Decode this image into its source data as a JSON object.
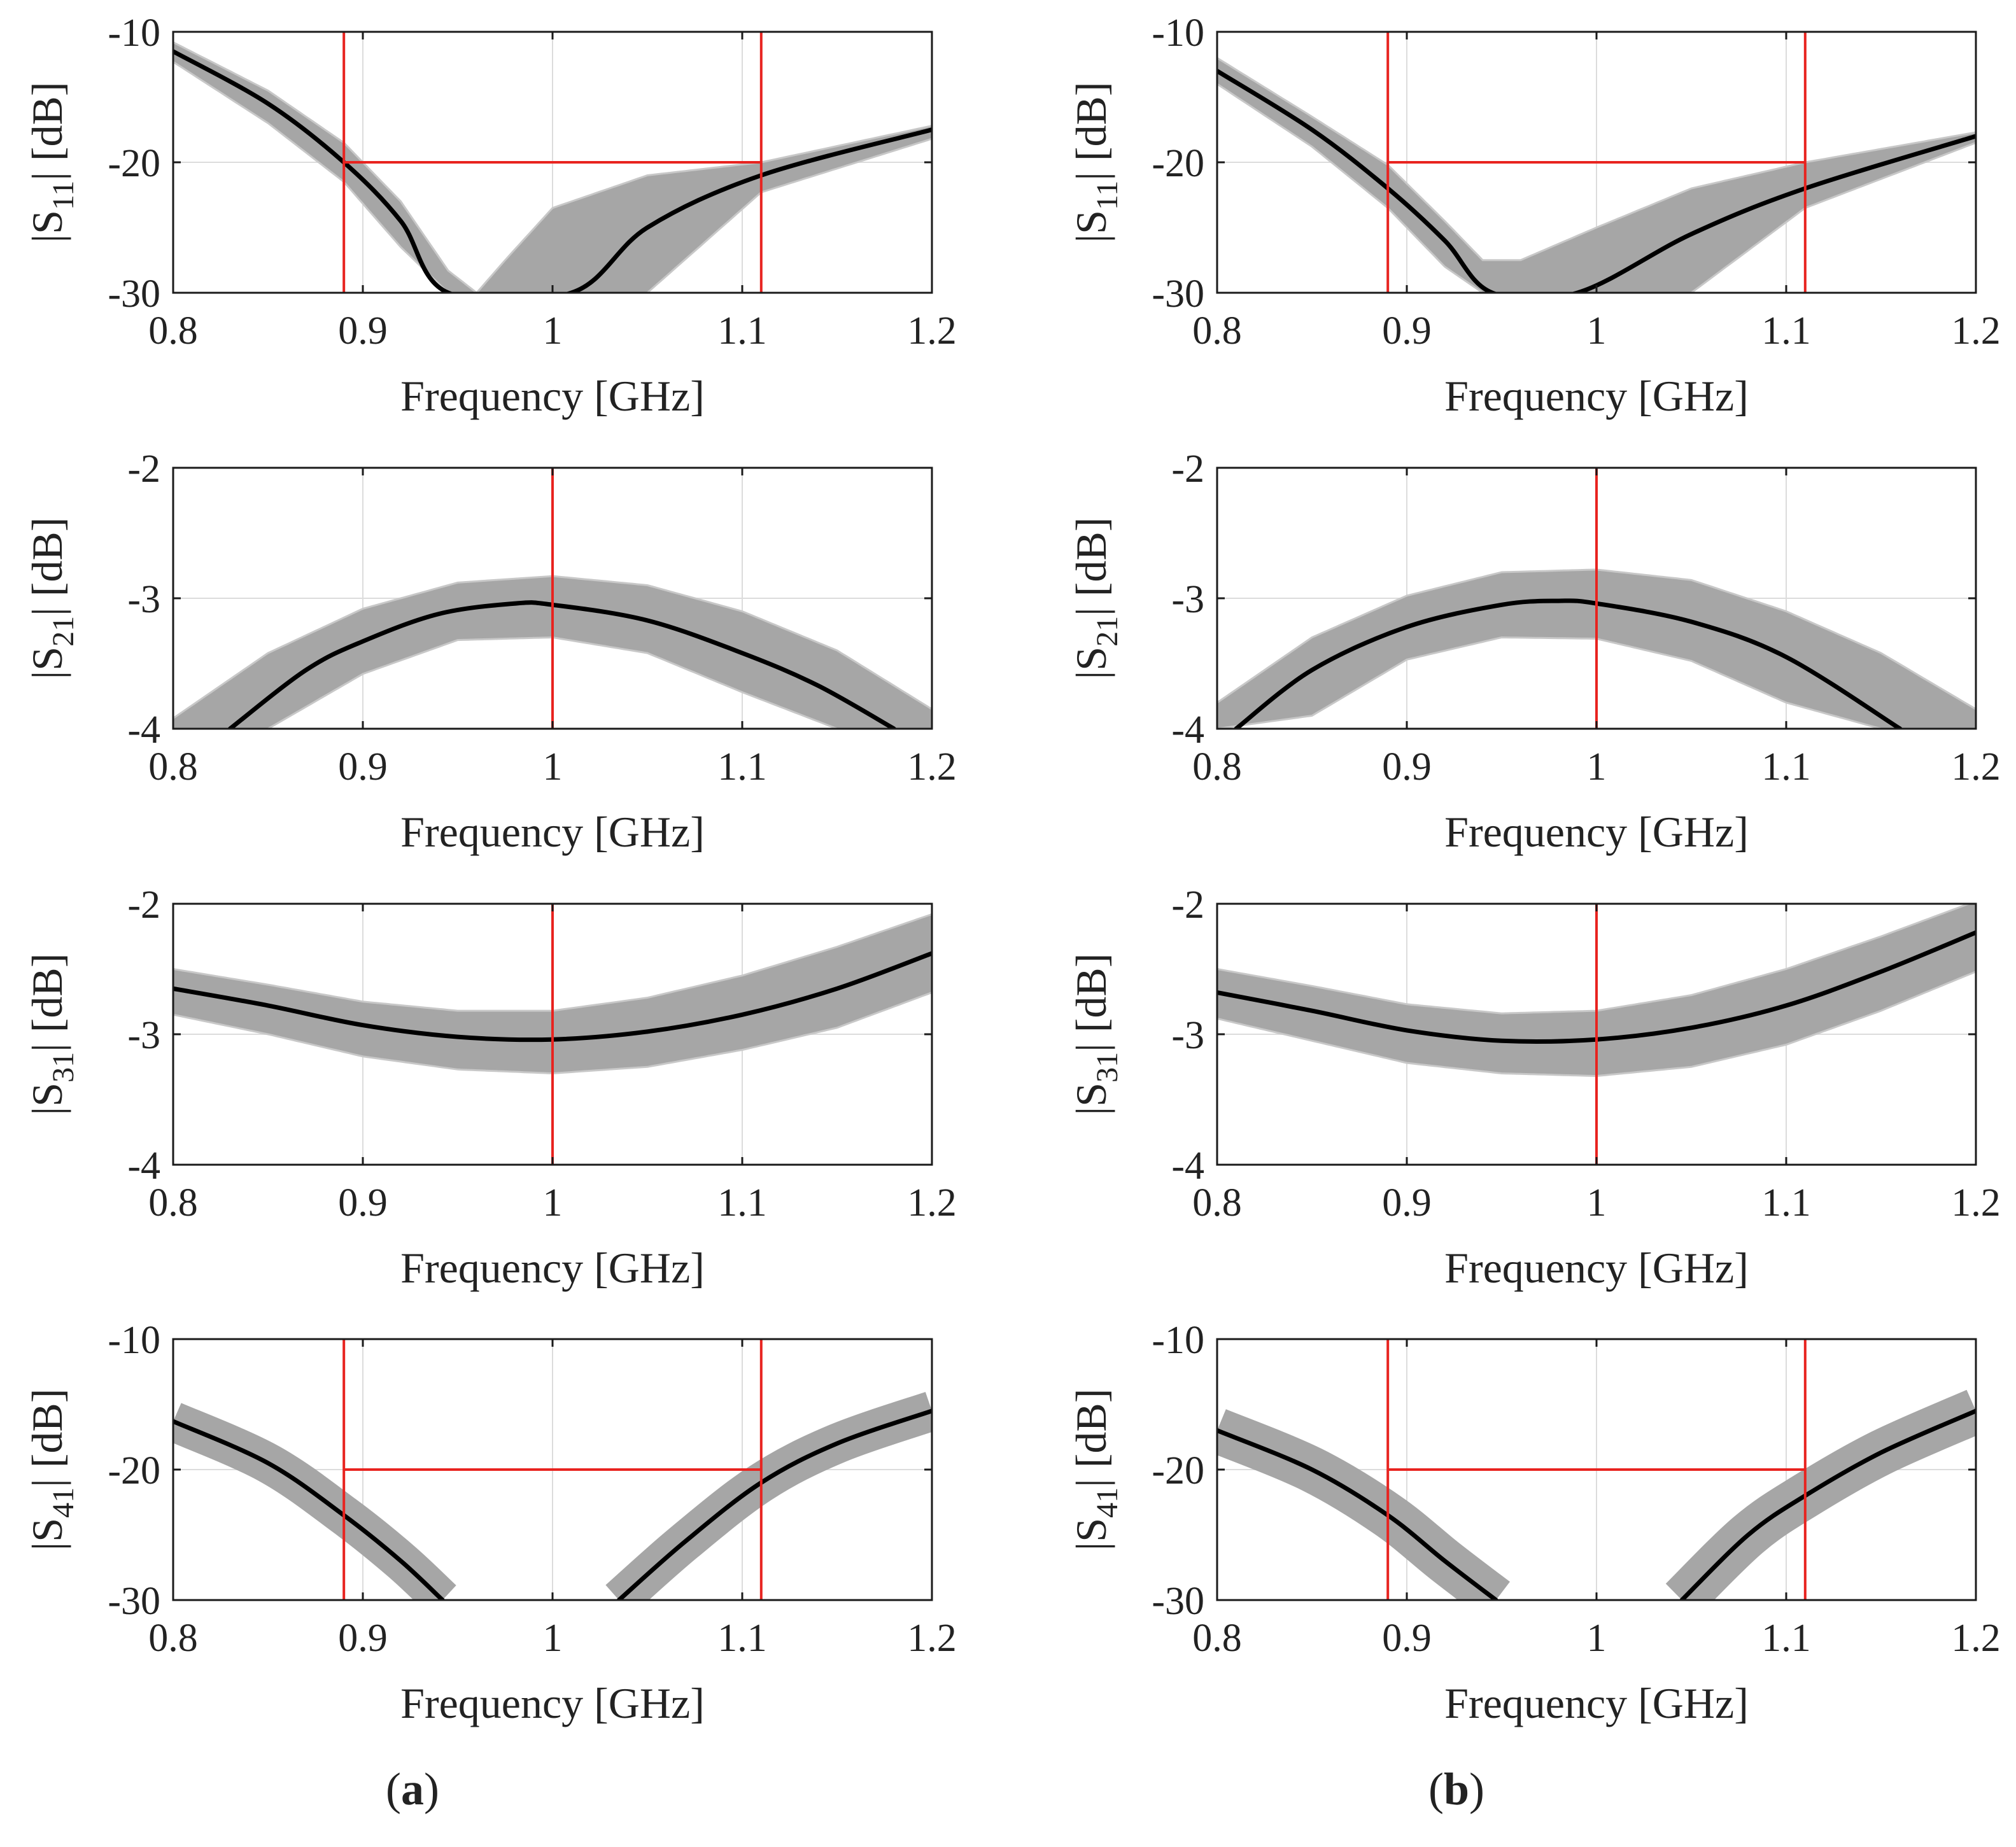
{
  "figure": {
    "columns": [
      {
        "label": "(a)",
        "letter": "a"
      },
      {
        "label": "(b)",
        "letter": "b"
      }
    ]
  },
  "colors": {
    "nominal": "#000000",
    "monte_carlo": "#a6a6a6",
    "spec": "#e8231f",
    "grid": "#dcdcdc",
    "axis": "#1a1a1a"
  },
  "chart_data": [
    {
      "type": "line",
      "column": "a",
      "row": 1,
      "title": "",
      "xlabel": "Frequency [GHz]",
      "ylabel": {
        "prefix": "|S",
        "sub": "11",
        "suffix": "| [dB]"
      },
      "xlim": [
        0.8,
        1.2
      ],
      "ylim": [
        -30,
        -10
      ],
      "xticks": [
        0.8,
        0.9,
        1,
        1.1,
        1.2
      ],
      "xtick_labels": [
        "0.8",
        "0.9",
        "1",
        "1.1",
        "1.2"
      ],
      "yticks": [
        -10,
        -20,
        -30
      ],
      "ytick_labels": [
        "-10",
        "-20",
        "-30"
      ],
      "grid": true,
      "nominal": {
        "x": [
          0.8,
          0.85,
          0.89,
          0.92,
          0.945,
          1.01,
          1.05,
          1.11,
          1.2
        ],
        "y": [
          -11.5,
          -15.5,
          -20,
          -24.5,
          -30,
          -30,
          -25,
          -21,
          -17.5
        ]
      },
      "spread": {
        "x": [
          0.8,
          0.85,
          0.89,
          0.92,
          0.945,
          0.96,
          0.975,
          1.0,
          1.05,
          1.11,
          1.2
        ],
        "upper": [
          -10.8,
          -14.5,
          -18.5,
          -23,
          -28.3,
          -30,
          -27.5,
          -23.5,
          -21,
          -20,
          -17.2
        ],
        "lower": [
          -12.3,
          -17,
          -21.5,
          -26.5,
          -30,
          -30,
          -30,
          -30,
          -30,
          -22.3,
          -18.2
        ]
      },
      "markers": {
        "vlines": [
          0.89,
          1.11
        ],
        "hlines": [
          {
            "y": -20,
            "x": [
              0.89,
              1.11
            ]
          }
        ]
      }
    },
    {
      "type": "line",
      "column": "b",
      "row": 1,
      "title": "",
      "xlabel": "Frequency [GHz]",
      "ylabel": {
        "prefix": "|S",
        "sub": "11",
        "suffix": "| [dB]"
      },
      "xlim": [
        0.8,
        1.2
      ],
      "ylim": [
        -30,
        -10
      ],
      "xticks": [
        0.8,
        0.9,
        1,
        1.1,
        1.2
      ],
      "xtick_labels": [
        "0.8",
        "0.9",
        "1",
        "1.1",
        "1.2"
      ],
      "yticks": [
        -10,
        -20,
        -30
      ],
      "ytick_labels": [
        "-10",
        "-20",
        "-30"
      ],
      "grid": true,
      "nominal": {
        "x": [
          0.8,
          0.85,
          0.89,
          0.92,
          0.945,
          0.99,
          1.05,
          1.11,
          1.2
        ],
        "y": [
          -13,
          -17.5,
          -22,
          -26,
          -30,
          -30,
          -25.5,
          -22,
          -18
        ]
      },
      "spread": {
        "x": [
          0.8,
          0.85,
          0.89,
          0.92,
          0.94,
          0.96,
          1.0,
          1.05,
          1.11,
          1.2
        ],
        "upper": [
          -12,
          -16.5,
          -20.2,
          -24.5,
          -27.5,
          -27.5,
          -25,
          -22,
          -20,
          -17.7
        ],
        "lower": [
          -14,
          -18.8,
          -23.5,
          -28,
          -30,
          -30,
          -30,
          -30,
          -23.5,
          -18.5
        ]
      },
      "markers": {
        "vlines": [
          0.89,
          1.11
        ],
        "hlines": [
          {
            "y": -20,
            "x": [
              0.89,
              1.11
            ]
          }
        ]
      }
    },
    {
      "type": "line",
      "column": "a",
      "row": 2,
      "title": "",
      "xlabel": "Frequency [GHz]",
      "ylabel": {
        "prefix": "|S",
        "sub": "21",
        "suffix": "| [dB]"
      },
      "xlim": [
        0.8,
        1.2
      ],
      "ylim": [
        -4,
        -2
      ],
      "xticks": [
        0.8,
        0.9,
        1,
        1.1,
        1.2
      ],
      "xtick_labels": [
        "0.8",
        "0.9",
        "1",
        "1.1",
        "1.2"
      ],
      "yticks": [
        -2,
        -3,
        -4
      ],
      "ytick_labels": [
        "-2",
        "-3",
        "-4"
      ],
      "grid": true,
      "nominal": {
        "x": [
          0.83,
          0.87,
          0.9,
          0.94,
          0.98,
          1.0,
          1.05,
          1.1,
          1.14,
          1.18
        ],
        "y": [
          -4,
          -3.55,
          -3.33,
          -3.12,
          -3.04,
          -3.05,
          -3.17,
          -3.42,
          -3.67,
          -4
        ]
      },
      "spread": {
        "x": [
          0.8,
          0.85,
          0.9,
          0.95,
          1.0,
          1.05,
          1.1,
          1.15,
          1.2
        ],
        "upper": [
          -3.92,
          -3.42,
          -3.08,
          -2.88,
          -2.83,
          -2.9,
          -3.1,
          -3.4,
          -3.85
        ],
        "lower": [
          -4,
          -4,
          -3.58,
          -3.32,
          -3.3,
          -3.42,
          -3.72,
          -4,
          -4
        ]
      },
      "markers": {
        "vlines": [
          1.0
        ],
        "hlines": []
      }
    },
    {
      "type": "line",
      "column": "b",
      "row": 2,
      "title": "",
      "xlabel": "Frequency [GHz]",
      "ylabel": {
        "prefix": "|S",
        "sub": "21",
        "suffix": "| [dB]"
      },
      "xlim": [
        0.8,
        1.2
      ],
      "ylim": [
        -4,
        -2
      ],
      "xticks": [
        0.8,
        0.9,
        1,
        1.1,
        1.2
      ],
      "xtick_labels": [
        "0.8",
        "0.9",
        "1",
        "1.1",
        "1.2"
      ],
      "yticks": [
        -2,
        -3,
        -4
      ],
      "ytick_labels": [
        "-2",
        "-3",
        "-4"
      ],
      "grid": true,
      "nominal": {
        "x": [
          0.81,
          0.85,
          0.9,
          0.95,
          0.98,
          1.0,
          1.05,
          1.1,
          1.16
        ],
        "y": [
          -4,
          -3.55,
          -3.22,
          -3.05,
          -3.02,
          -3.04,
          -3.18,
          -3.45,
          -4
        ]
      },
      "spread": {
        "x": [
          0.8,
          0.85,
          0.9,
          0.95,
          1.0,
          1.05,
          1.1,
          1.15,
          1.2
        ],
        "upper": [
          -3.8,
          -3.3,
          -2.98,
          -2.8,
          -2.78,
          -2.86,
          -3.1,
          -3.42,
          -3.85
        ],
        "lower": [
          -4,
          -3.9,
          -3.47,
          -3.3,
          -3.31,
          -3.48,
          -3.8,
          -4,
          -4
        ]
      },
      "markers": {
        "vlines": [
          1.0
        ],
        "hlines": []
      }
    },
    {
      "type": "line",
      "column": "a",
      "row": 3,
      "title": "",
      "xlabel": "Frequency [GHz]",
      "ylabel": {
        "prefix": "|S",
        "sub": "31",
        "suffix": "| [dB]"
      },
      "xlim": [
        0.8,
        1.2
      ],
      "ylim": [
        -4,
        -2
      ],
      "xticks": [
        0.8,
        0.9,
        1,
        1.1,
        1.2
      ],
      "xtick_labels": [
        "0.8",
        "0.9",
        "1",
        "1.1",
        "1.2"
      ],
      "yticks": [
        -2,
        -3,
        -4
      ],
      "ytick_labels": [
        "-2",
        "-3",
        "-4"
      ],
      "grid": true,
      "nominal": {
        "x": [
          0.8,
          0.85,
          0.9,
          0.95,
          1.0,
          1.05,
          1.1,
          1.15,
          1.2
        ],
        "y": [
          -2.65,
          -2.78,
          -2.93,
          -3.02,
          -3.04,
          -2.98,
          -2.85,
          -2.65,
          -2.38
        ]
      },
      "spread": {
        "x": [
          0.8,
          0.85,
          0.9,
          0.95,
          1.0,
          1.05,
          1.1,
          1.15,
          1.2
        ],
        "upper": [
          -2.5,
          -2.62,
          -2.75,
          -2.82,
          -2.82,
          -2.72,
          -2.55,
          -2.33,
          -2.08
        ]
      },
      "spread_lower": [
        -2.85,
        -3.0,
        -3.17,
        -3.27,
        -3.3,
        -3.25,
        -3.12,
        -2.95,
        -2.68
      ],
      "markers": {
        "vlines": [
          1.0
        ],
        "hlines": []
      }
    },
    {
      "type": "line",
      "column": "b",
      "row": 3,
      "title": "",
      "xlabel": "Frequency [GHz]",
      "ylabel": {
        "prefix": "|S",
        "sub": "31",
        "suffix": "| [dB]"
      },
      "xlim": [
        0.8,
        1.2
      ],
      "ylim": [
        -4,
        -2
      ],
      "xticks": [
        0.8,
        0.9,
        1,
        1.1,
        1.2
      ],
      "xtick_labels": [
        "0.8",
        "0.9",
        "1",
        "1.1",
        "1.2"
      ],
      "yticks": [
        -2,
        -3,
        -4
      ],
      "ytick_labels": [
        "-2",
        "-3",
        "-4"
      ],
      "grid": true,
      "nominal": {
        "x": [
          0.8,
          0.85,
          0.9,
          0.95,
          1.0,
          1.05,
          1.1,
          1.15,
          1.2
        ],
        "y": [
          -2.68,
          -2.82,
          -2.97,
          -3.05,
          -3.04,
          -2.95,
          -2.78,
          -2.52,
          -2.22
        ]
      },
      "spread": {
        "x": [
          0.8,
          0.85,
          0.9,
          0.95,
          1.0,
          1.05,
          1.1,
          1.15,
          1.2
        ],
        "upper": [
          -2.5,
          -2.63,
          -2.77,
          -2.84,
          -2.82,
          -2.7,
          -2.5,
          -2.25,
          -1.98
        ]
      },
      "spread_lower": [
        -2.88,
        -3.05,
        -3.22,
        -3.3,
        -3.32,
        -3.25,
        -3.08,
        -2.82,
        -2.52
      ],
      "markers": {
        "vlines": [
          1.0
        ],
        "hlines": []
      }
    },
    {
      "type": "line",
      "column": "a",
      "row": 4,
      "title": "",
      "xlabel": "Frequency [GHz]",
      "ylabel": {
        "prefix": "|S",
        "sub": "41",
        "suffix": "| [dB]"
      },
      "xlim": [
        0.8,
        1.2
      ],
      "ylim": [
        -30,
        -10
      ],
      "xticks": [
        0.8,
        0.9,
        1,
        1.1,
        1.2
      ],
      "xtick_labels": [
        "0.8",
        "0.9",
        "1",
        "1.1",
        "1.2"
      ],
      "yticks": [
        -10,
        -20,
        -30
      ],
      "ytick_labels": [
        "-10",
        "-20",
        "-30"
      ],
      "grid": true,
      "nominal": {
        "x": [
          0.8,
          0.85,
          0.89,
          0.92,
          0.942
        ],
        "y": [
          -16.3,
          -19.5,
          -23.5,
          -27,
          -30
        ]
      },
      "nominal_right": {
        "x": [
          1.035,
          1.07,
          1.11,
          1.15,
          1.2
        ],
        "y": [
          -30,
          -25.5,
          -21,
          -18,
          -15.5
        ]
      },
      "band_width_db": 1.4,
      "markers": {
        "vlines": [
          0.89,
          1.11
        ],
        "hlines": [
          {
            "y": -20,
            "x": [
              0.89,
              1.11
            ]
          }
        ]
      }
    },
    {
      "type": "line",
      "column": "b",
      "row": 4,
      "title": "",
      "xlabel": "Frequency [GHz]",
      "ylabel": {
        "prefix": "|S",
        "sub": "41",
        "suffix": "| [dB]"
      },
      "xlim": [
        0.8,
        1.2
      ],
      "ylim": [
        -30,
        -10
      ],
      "xticks": [
        0.8,
        0.9,
        1,
        1.1,
        1.2
      ],
      "xtick_labels": [
        "0.8",
        "0.9",
        "1",
        "1.1",
        "1.2"
      ],
      "yticks": [
        -10,
        -20,
        -30
      ],
      "ytick_labels": [
        "-10",
        "-20",
        "-30"
      ],
      "grid": true,
      "nominal": {
        "x": [
          0.8,
          0.85,
          0.89,
          0.92,
          0.947
        ],
        "y": [
          -17,
          -20,
          -23.5,
          -27,
          -30
        ]
      },
      "nominal_right": {
        "x": [
          1.045,
          1.08,
          1.11,
          1.15,
          1.2
        ],
        "y": [
          -30,
          -25,
          -22,
          -18.7,
          -15.5
        ]
      },
      "band_width_db": 1.6,
      "markers": {
        "vlines": [
          0.89,
          1.11
        ],
        "hlines": [
          {
            "y": -20,
            "x": [
              0.89,
              1.11
            ]
          }
        ]
      }
    }
  ]
}
